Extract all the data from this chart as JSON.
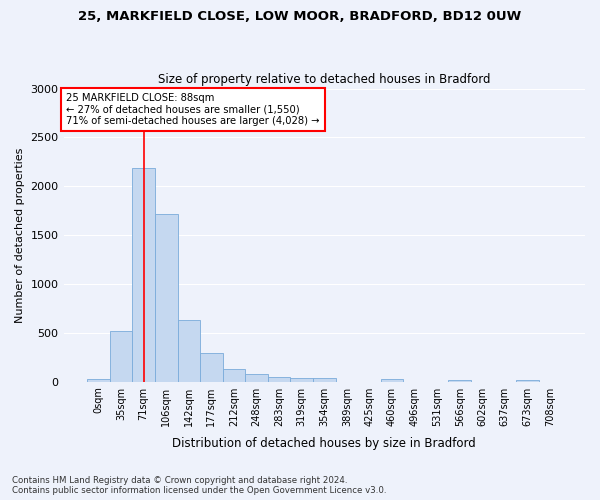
{
  "title1": "25, MARKFIELD CLOSE, LOW MOOR, BRADFORD, BD12 0UW",
  "title2": "Size of property relative to detached houses in Bradford",
  "xlabel": "Distribution of detached houses by size in Bradford",
  "ylabel": "Number of detached properties",
  "footer1": "Contains HM Land Registry data © Crown copyright and database right 2024.",
  "footer2": "Contains public sector information licensed under the Open Government Licence v3.0.",
  "bin_labels": [
    "0sqm",
    "35sqm",
    "71sqm",
    "106sqm",
    "142sqm",
    "177sqm",
    "212sqm",
    "248sqm",
    "283sqm",
    "319sqm",
    "354sqm",
    "389sqm",
    "425sqm",
    "460sqm",
    "496sqm",
    "531sqm",
    "566sqm",
    "602sqm",
    "637sqm",
    "673sqm",
    "708sqm"
  ],
  "bar_values": [
    30,
    520,
    2190,
    1720,
    630,
    290,
    130,
    75,
    45,
    35,
    35,
    0,
    0,
    30,
    0,
    0,
    20,
    0,
    0,
    20,
    0
  ],
  "bar_color": "#c5d8f0",
  "bar_edgecolor": "#7aabda",
  "vline_x": 2,
  "annotation_title": "25 MARKFIELD CLOSE: 88sqm",
  "annotation_line1": "← 27% of detached houses are smaller (1,550)",
  "annotation_line2": "71% of semi-detached houses are larger (4,028) →",
  "annotation_box_color": "white",
  "annotation_box_edgecolor": "red",
  "vline_color": "red",
  "ylim": [
    0,
    3000
  ],
  "yticks": [
    0,
    500,
    1000,
    1500,
    2000,
    2500,
    3000
  ],
  "background_color": "#eef2fb",
  "grid_color": "white"
}
